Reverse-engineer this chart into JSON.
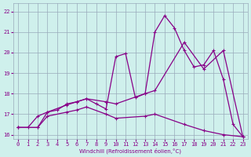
{
  "xlabel": "Windchill (Refroidissement éolien,°C)",
  "xlim": [
    -0.5,
    23.5
  ],
  "ylim": [
    15.8,
    22.4
  ],
  "yticks": [
    16,
    17,
    18,
    19,
    20,
    21,
    22
  ],
  "xticks": [
    0,
    1,
    2,
    3,
    4,
    5,
    6,
    7,
    8,
    9,
    10,
    11,
    12,
    13,
    14,
    15,
    16,
    17,
    18,
    19,
    20,
    21,
    22,
    23
  ],
  "bg_color": "#cff0ec",
  "line_color": "#880088",
  "grid_color": "#99aabb",
  "line1_x": [
    0,
    1,
    2,
    3,
    4,
    5,
    6,
    7,
    8,
    9,
    10,
    11,
    12,
    13,
    14,
    15,
    16,
    17,
    18,
    19,
    20,
    21,
    22,
    23
  ],
  "line1_y": [
    16.35,
    16.35,
    16.9,
    17.1,
    17.2,
    17.5,
    17.6,
    17.75,
    17.5,
    17.25,
    19.8,
    19.95,
    17.8,
    18.0,
    21.0,
    21.8,
    21.2,
    20.1,
    19.3,
    19.4,
    20.1,
    18.7,
    16.5,
    15.9
  ],
  "line2_x": [
    0,
    2,
    3,
    5,
    6,
    7,
    9,
    10,
    13,
    14,
    17,
    19,
    21,
    23
  ],
  "line2_y": [
    16.35,
    16.35,
    17.1,
    17.45,
    17.6,
    17.75,
    17.6,
    17.5,
    18.0,
    18.15,
    20.5,
    19.2,
    20.1,
    15.9
  ],
  "line3_x": [
    0,
    2,
    3,
    5,
    6,
    7,
    9,
    10,
    13,
    14,
    17,
    19,
    21,
    23
  ],
  "line3_y": [
    16.35,
    16.35,
    16.9,
    17.1,
    17.2,
    17.35,
    17.0,
    16.8,
    16.9,
    17.0,
    16.5,
    16.2,
    16.0,
    15.9
  ]
}
